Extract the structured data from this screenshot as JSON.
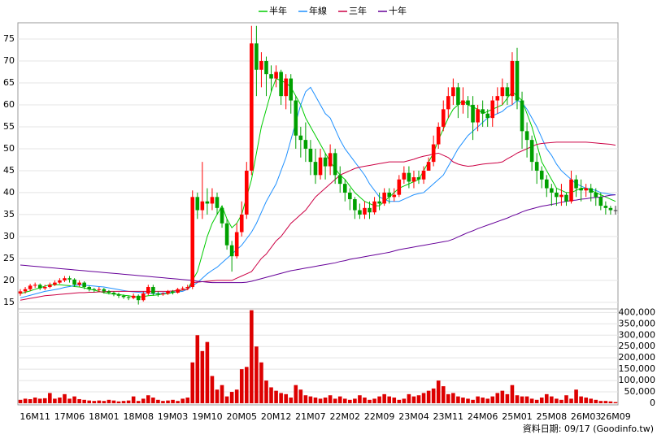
{
  "chart_data": {
    "type": "candlestick",
    "categories": [
      null,
      null,
      null,
      "16M11",
      null,
      null,
      null,
      null,
      null,
      null,
      "17M06",
      null,
      null,
      null,
      null,
      null,
      null,
      "18M01",
      null,
      null,
      null,
      null,
      null,
      null,
      "18M08",
      null,
      null,
      null,
      null,
      null,
      null,
      "19M03",
      null,
      null,
      null,
      null,
      null,
      null,
      "19M10",
      null,
      null,
      null,
      null,
      null,
      null,
      "20M05",
      null,
      null,
      null,
      null,
      null,
      null,
      "20M12",
      null,
      null,
      null,
      null,
      null,
      null,
      "21M07",
      null,
      null,
      null,
      null,
      null,
      null,
      "22M02",
      null,
      null,
      null,
      null,
      null,
      null,
      "22M09",
      null,
      null,
      null,
      null,
      null,
      null,
      "23M04",
      null,
      null,
      null,
      null,
      null,
      null,
      "23M11",
      null,
      null,
      null,
      null,
      null,
      null,
      "24M06",
      null,
      null,
      null,
      null,
      null,
      null,
      "25M01",
      null,
      null,
      null,
      null,
      null,
      null,
      "25M08",
      null,
      null,
      null,
      null,
      null,
      null,
      "26M03",
      null,
      null,
      null,
      null,
      null,
      "26M09"
    ],
    "open": [
      17,
      17.5,
      18,
      18.8,
      19,
      18.2,
      18.5,
      19,
      19.5,
      20,
      20.5,
      20.2,
      19,
      19.5,
      18.5,
      18,
      17.8,
      18,
      17.5,
      17.2,
      16.8,
      16.5,
      16.2,
      16,
      16.5,
      15.5,
      17,
      18.5,
      17,
      16.8,
      17,
      17.5,
      17.2,
      18,
      18.2,
      18.5,
      39,
      36,
      38,
      37.5,
      39,
      36.5,
      33,
      28,
      25.5,
      31,
      35,
      45,
      74,
      68,
      70,
      67,
      66,
      67.5,
      62,
      66,
      61,
      53,
      52,
      50,
      47,
      44,
      48,
      46,
      49,
      44,
      42,
      40,
      38.5,
      36,
      35,
      36.5,
      35.5,
      38,
      37.5,
      40,
      39,
      39.5,
      43,
      44.5,
      42.5,
      43.5,
      43,
      45,
      47,
      51,
      55,
      59,
      62,
      64,
      60,
      61,
      60,
      56,
      59,
      58,
      57,
      61,
      62,
      64,
      62,
      70,
      61,
      54,
      52,
      47,
      45,
      43,
      41,
      40,
      39,
      39.5,
      38,
      43,
      41,
      40.5,
      41,
      40,
      39,
      37,
      36.5,
      36
    ],
    "high": [
      18,
      18.5,
      19.2,
      19.5,
      19.3,
      19,
      19.5,
      20,
      20.5,
      21,
      21,
      20.5,
      20,
      19.8,
      18.8,
      18.3,
      18.5,
      18.3,
      17.8,
      17.5,
      17.2,
      16.8,
      16.5,
      17,
      16.8,
      17.5,
      19,
      19,
      17.5,
      17.3,
      17.8,
      17.8,
      18.3,
      18.6,
      19,
      40.5,
      40,
      47,
      41,
      41,
      40,
      37,
      34,
      29,
      33,
      38,
      47,
      78,
      78,
      72,
      71,
      69,
      69,
      68,
      67,
      67,
      62,
      55,
      56,
      52,
      50,
      50,
      49,
      51,
      50,
      46,
      43,
      41,
      39,
      37.5,
      38,
      38,
      39,
      40,
      41,
      41,
      41,
      44,
      46,
      46,
      45,
      45,
      46,
      48,
      53,
      56,
      61,
      64,
      66,
      65,
      64,
      62,
      62,
      60,
      61,
      59,
      62,
      64,
      66,
      65,
      72,
      73,
      63,
      56,
      53,
      49,
      46,
      44,
      42,
      41,
      42,
      40,
      45,
      44,
      43,
      42,
      42,
      41,
      40,
      38,
      37,
      37
    ],
    "low": [
      16.5,
      17,
      17.6,
      18.3,
      17.8,
      17.8,
      18.2,
      18.7,
      19.2,
      19.6,
      19.5,
      18.5,
      18.6,
      18,
      17.5,
      17.3,
      17.4,
      17,
      16.8,
      16.4,
      16,
      15.8,
      15.5,
      15.7,
      14.5,
      15.2,
      16.6,
      16.5,
      16.3,
      16.5,
      16.7,
      16.8,
      17,
      17.7,
      17.8,
      18,
      34,
      34,
      35,
      36,
      35,
      32,
      27,
      22,
      25,
      30,
      34,
      44,
      62,
      64,
      62,
      63,
      64,
      60,
      59,
      58,
      50,
      48,
      47,
      44,
      42,
      43,
      43,
      44,
      42,
      40,
      38,
      36,
      34,
      34,
      34,
      34,
      35,
      36,
      37,
      37.5,
      38,
      39,
      42,
      41,
      41,
      42,
      42,
      45,
      46,
      50,
      54,
      57,
      60,
      57,
      58,
      57,
      52,
      54,
      55,
      55,
      55,
      58,
      60,
      60,
      60,
      59,
      50,
      48,
      45,
      42,
      41,
      39,
      37,
      37,
      37,
      37,
      37.5,
      39,
      38,
      39,
      38,
      37,
      36,
      35,
      35,
      35
    ],
    "close": [
      17.5,
      18,
      18.8,
      19,
      18.2,
      18.5,
      19,
      19.5,
      20,
      20.5,
      20.2,
      19,
      19.5,
      18.5,
      18,
      17.8,
      18,
      17.5,
      17.2,
      16.8,
      16.5,
      16.2,
      16,
      16.5,
      15.5,
      17,
      18.5,
      17,
      16.8,
      17,
      17.5,
      17.2,
      18,
      18.2,
      18.5,
      39,
      36,
      38,
      37.5,
      39,
      36.5,
      33,
      28,
      25.5,
      31,
      35,
      45,
      74,
      68,
      70,
      67,
      66,
      67.5,
      62,
      66,
      61,
      53,
      52,
      50,
      47,
      44,
      48,
      46,
      49,
      44,
      42,
      40,
      38.5,
      36,
      35,
      36.5,
      35.5,
      38,
      37.5,
      40,
      39,
      39.5,
      43,
      44.5,
      42.5,
      43.5,
      43,
      45,
      47,
      51,
      55,
      59,
      62,
      64,
      60,
      61,
      60,
      56,
      59,
      58,
      57,
      61,
      62,
      64,
      62,
      70,
      61,
      54,
      52,
      47,
      45,
      43,
      41,
      40,
      39,
      39.5,
      38,
      43,
      41,
      40.5,
      41,
      40,
      39,
      37,
      36.5,
      36,
      36
    ],
    "up_color": "#ff0000",
    "down_color": "#00a000",
    "flat_color": "#333333",
    "series": [
      {
        "name": "半年",
        "color": "#00cc00",
        "values": [
          17,
          17.3,
          17.6,
          18,
          18.3,
          18.7,
          19,
          19,
          19,
          18.9,
          18.8,
          18.6,
          18.5,
          18.3,
          18,
          17.8,
          17.5,
          17.2,
          17,
          16.9,
          16.8,
          16.6,
          16.5,
          16.3,
          16.2,
          16.3,
          16.5,
          16.6,
          16.7,
          16.9,
          17,
          17.2,
          17.5,
          17.8,
          18,
          20,
          22,
          26,
          30,
          33,
          35,
          37,
          34,
          32,
          33,
          35,
          39,
          43,
          49,
          55,
          59,
          63,
          66,
          65.5,
          65,
          64,
          62,
          60,
          57,
          55,
          53,
          51,
          49,
          47,
          45.5,
          44,
          43,
          41.5,
          40,
          39,
          38,
          37.5,
          37,
          37,
          38,
          39,
          40,
          41,
          41.5,
          42,
          42.5,
          43,
          45,
          47,
          49,
          52,
          54.5,
          57,
          59,
          60,
          61,
          60,
          59.5,
          59,
          58,
          58.5,
          59,
          59.5,
          60,
          61.5,
          63,
          62,
          61,
          58,
          55,
          51,
          47,
          45,
          43,
          41,
          40.5,
          40,
          40,
          40.5,
          41,
          41,
          40.5,
          40,
          39.5,
          39,
          38.5,
          38
        ]
      },
      {
        "name": "年線",
        "color": "#1e90ff",
        "values": [
          16,
          16.3,
          16.6,
          16.9,
          17.2,
          17.5,
          17.7,
          17.9,
          18.1,
          18.4,
          18.6,
          18.8,
          19,
          18.9,
          18.8,
          18.7,
          18.6,
          18.5,
          18.3,
          18.1,
          17.9,
          17.7,
          17.5,
          17.4,
          17.3,
          17.2,
          17.1,
          17,
          17,
          17.1,
          17.2,
          17.3,
          17.4,
          17.5,
          18,
          18.8,
          19.5,
          20.5,
          21.5,
          22.3,
          23,
          24,
          25,
          26,
          27,
          28,
          29.5,
          31,
          33,
          35.5,
          38,
          40,
          42,
          45,
          48,
          52,
          56,
          60,
          63,
          64,
          62,
          60,
          58,
          57,
          54.5,
          52,
          50,
          48.5,
          47,
          45.5,
          44,
          42,
          40.5,
          39,
          38.5,
          38,
          38,
          38,
          38.5,
          39,
          39.5,
          39.8,
          40,
          41,
          42,
          43,
          44,
          46,
          48,
          50,
          51.5,
          53,
          54,
          55,
          56,
          57,
          57.5,
          58,
          58.5,
          59.5,
          60,
          61,
          60.5,
          59,
          57,
          55,
          52.5,
          50,
          48.5,
          46.5,
          45,
          44,
          43,
          42,
          41.5,
          41,
          40.8,
          40.5,
          40,
          39.8,
          39.6,
          39.5
        ]
      },
      {
        "name": "三年",
        "color": "#cc0044",
        "values": [
          15.5,
          15.7,
          15.9,
          16.1,
          16.3,
          16.5,
          16.6,
          16.7,
          16.8,
          16.9,
          17,
          17.1,
          17.2,
          17.2,
          17.3,
          17.3,
          17.4,
          17.4,
          17.5,
          17.5,
          17.5,
          17.5,
          17.5,
          17.5,
          17.5,
          17.5,
          17.5,
          17.5,
          17.5,
          17.5,
          17.5,
          17.6,
          17.7,
          17.8,
          17.9,
          19.5,
          19.6,
          19.7,
          19.8,
          19.9,
          20,
          20,
          20,
          20,
          20.5,
          21,
          21.5,
          22,
          23.5,
          25,
          26,
          27.5,
          29,
          30,
          31.5,
          33,
          34,
          35,
          36,
          37.5,
          39,
          40,
          41,
          42,
          43,
          44,
          44.5,
          45,
          45.5,
          45.8,
          46,
          46.2,
          46.4,
          46.6,
          46.8,
          47,
          47,
          47,
          47,
          47.3,
          47.6,
          48,
          48.3,
          48.5,
          48.8,
          49,
          48.5,
          48,
          47,
          46.5,
          46.2,
          46,
          46.1,
          46.3,
          46.5,
          46.6,
          46.7,
          46.8,
          47,
          47.7,
          48.3,
          49,
          49.5,
          50,
          50.5,
          51,
          51.2,
          51.3,
          51.4,
          51.5,
          51.5,
          51.5,
          51.5,
          51.5,
          51.5,
          51.5,
          51.4,
          51.3,
          51.2,
          51.1,
          51,
          50.8
        ]
      },
      {
        "name": "十年",
        "color": "#660099",
        "values": [
          23.5,
          23.4,
          23.3,
          23.2,
          23.1,
          23,
          22.9,
          22.8,
          22.7,
          22.6,
          22.5,
          22.4,
          22.3,
          22.2,
          22.1,
          22,
          21.9,
          21.8,
          21.7,
          21.6,
          21.5,
          21.4,
          21.3,
          21.2,
          21.1,
          21,
          20.9,
          20.8,
          20.7,
          20.6,
          20.5,
          20.4,
          20.3,
          20.2,
          20.1,
          20,
          19.8,
          19.7,
          19.6,
          19.5,
          19.5,
          19.5,
          19.5,
          19.5,
          19.5,
          19.5,
          19.6,
          19.8,
          20.1,
          20.4,
          20.7,
          21,
          21.3,
          21.6,
          21.9,
          22.2,
          22.4,
          22.6,
          22.8,
          23,
          23.2,
          23.4,
          23.6,
          23.8,
          24,
          24.3,
          24.5,
          24.8,
          25,
          25.2,
          25.4,
          25.6,
          25.8,
          26,
          26.2,
          26.4,
          26.7,
          27,
          27.2,
          27.4,
          27.6,
          27.8,
          28,
          28.2,
          28.4,
          28.6,
          28.8,
          29,
          29.4,
          29.9,
          30.4,
          30.9,
          31.3,
          31.8,
          32.2,
          32.6,
          33,
          33.4,
          33.8,
          34.2,
          34.7,
          35.1,
          35.6,
          36,
          36.3,
          36.6,
          36.9,
          37.1,
          37.3,
          37.5,
          37.8,
          38,
          38.2,
          38.3,
          38.5,
          38.6,
          38.8,
          38.9,
          39,
          39.2,
          39.4,
          39.5
        ]
      }
    ],
    "volume": {
      "color": "#dd0000",
      "axis": "y2",
      "values": [
        15000,
        20000,
        18000,
        25000,
        20000,
        22000,
        45000,
        20000,
        25000,
        40000,
        20000,
        30000,
        18000,
        15000,
        12000,
        10000,
        12000,
        10000,
        15000,
        12000,
        8000,
        10000,
        12000,
        30000,
        10000,
        20000,
        35000,
        25000,
        15000,
        10000,
        12000,
        15000,
        10000,
        20000,
        25000,
        180000,
        300000,
        230000,
        270000,
        120000,
        60000,
        80000,
        30000,
        50000,
        60000,
        150000,
        160000,
        410000,
        250000,
        180000,
        100000,
        70000,
        55000,
        45000,
        40000,
        25000,
        80000,
        60000,
        35000,
        30000,
        25000,
        20000,
        25000,
        35000,
        20000,
        30000,
        20000,
        15000,
        20000,
        35000,
        25000,
        15000,
        20000,
        30000,
        40000,
        30000,
        25000,
        15000,
        20000,
        40000,
        30000,
        35000,
        45000,
        55000,
        65000,
        100000,
        75000,
        40000,
        45000,
        30000,
        25000,
        20000,
        15000,
        30000,
        25000,
        20000,
        30000,
        45000,
        55000,
        40000,
        80000,
        35000,
        30000,
        30000,
        20000,
        15000,
        25000,
        40000,
        30000,
        20000,
        15000,
        35000,
        20000,
        60000,
        30000,
        25000,
        20000,
        15000,
        10000,
        10000,
        8000,
        5000
      ]
    },
    "ylim": [
      13.5,
      78.7
    ],
    "yticks": [
      15,
      20,
      25,
      30,
      35,
      40,
      45,
      50,
      55,
      60,
      65,
      70,
      75
    ],
    "y2lim": [
      0,
      430000
    ],
    "y2ticks": [
      0,
      {
        "value": 50000,
        "label": "50,000"
      },
      {
        "value": 100000,
        "label": "100,000"
      },
      {
        "value": 150000,
        "label": "150,000"
      },
      {
        "value": 200000,
        "label": "200,000"
      },
      {
        "value": 250000,
        "label": "250,000"
      },
      {
        "value": 300000,
        "label": "300,000"
      },
      {
        "value": 350000,
        "label": "350,000"
      },
      {
        "value": 400000,
        "label": "400,000"
      }
    ],
    "grid": true,
    "footnote": "資料日期: 09/17 (Goodinfo.tw)"
  }
}
